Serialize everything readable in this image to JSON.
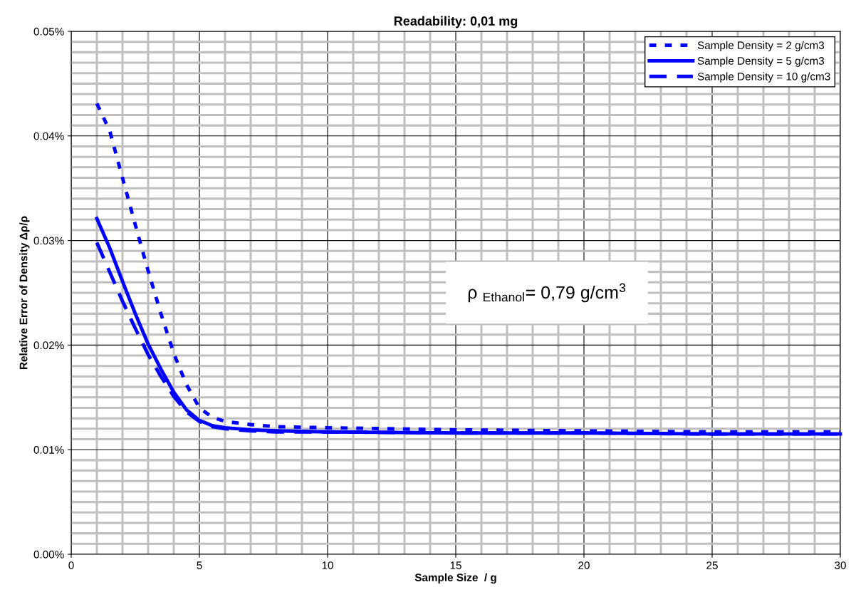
{
  "chart_data": {
    "type": "line",
    "title": "Readability: 0,01 mg",
    "xlabel": "Sample Size  / g",
    "ylabel": "Relative Error of Density Δρ/ρ",
    "x": [
      1,
      1.5,
      2,
      2.5,
      3,
      3.5,
      4,
      4.5,
      5,
      5.5,
      6,
      7,
      8,
      10,
      15,
      20,
      25,
      30
    ],
    "series": [
      {
        "name": "Sample Density = 2 g/cm3",
        "color": "#0000ff",
        "line_style": "dotted",
        "values": [
          0.0431,
          0.0405,
          0.036,
          0.0315,
          0.0271,
          0.023,
          0.0192,
          0.0162,
          0.014,
          0.0131,
          0.0127,
          0.0124,
          0.0122,
          0.0121,
          0.0119,
          0.0118,
          0.0117,
          0.0117
        ]
      },
      {
        "name": "Sample Density = 5 g/cm3",
        "color": "#0000ff",
        "line_style": "solid",
        "values": [
          0.0321,
          0.0293,
          0.0261,
          0.023,
          0.0201,
          0.0177,
          0.0155,
          0.0138,
          0.0128,
          0.0123,
          0.0121,
          0.0119,
          0.0118,
          0.0117,
          0.0116,
          0.0116,
          0.0115,
          0.0115
        ]
      },
      {
        "name": "Sample Density = 10 g/cm3",
        "color": "#0000ff",
        "line_style": "dashed",
        "values": [
          0.0298,
          0.027,
          0.0242,
          0.0216,
          0.0191,
          0.017,
          0.0151,
          0.0136,
          0.0127,
          0.0122,
          0.012,
          0.0118,
          0.0117,
          0.0117,
          0.0116,
          0.0116,
          0.0115,
          0.0115
        ]
      }
    ],
    "xlim": [
      0,
      30
    ],
    "xticks": [
      0,
      5,
      10,
      15,
      20,
      25,
      30
    ],
    "ylim": [
      0,
      0.05
    ],
    "yticks": [
      {
        "value": 0,
        "label": "0.00%"
      },
      {
        "value": 0.01,
        "label": "0.01%"
      },
      {
        "value": 0.02,
        "label": "0.02%"
      },
      {
        "value": 0.03,
        "label": "0.03%"
      },
      {
        "value": 0.04,
        "label": "0.04%"
      },
      {
        "value": 0.05,
        "label": "0.05%"
      }
    ],
    "annotations": [
      "ρ $_{Ethanol}$= 0,79 g/cm$^{3}$"
    ],
    "grid": true,
    "legend": "top right",
    "marker": "none"
  }
}
